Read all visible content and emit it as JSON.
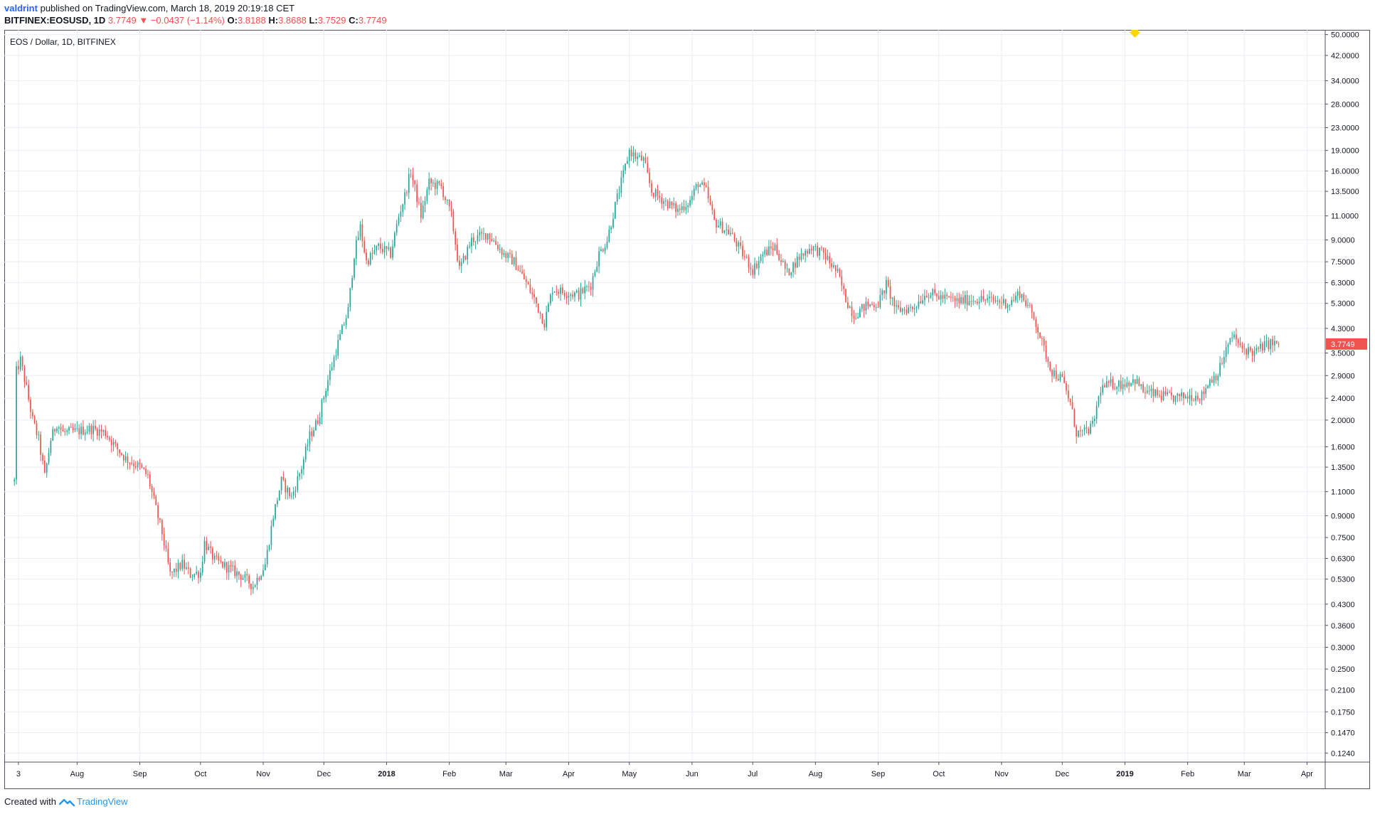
{
  "header": {
    "username": "valdrint",
    "published_text": "published on TradingView.com, March 18, 2019 20:19:18 CET",
    "symbol": "BITFINEX:EOSUSD, 1D",
    "last": "3.7749",
    "change": "−0.0437 (−1.14%)",
    "open_label": "O:",
    "open": "3.8188",
    "high_label": "H:",
    "high": "3.8688",
    "low_label": "L:",
    "low": "3.7529",
    "close_label": "C:",
    "close": "3.7749",
    "down_arrow": "▼"
  },
  "legend": {
    "title": "EOS / Dollar, 1D, BITFINEX"
  },
  "footer": {
    "created_with": "Created with",
    "brand": "TradingView"
  },
  "colors": {
    "up": "#26a69a",
    "down": "#ef5350",
    "grid": "#e8eef3",
    "axis": "#50535e",
    "price_label_bg": "#ef5350",
    "marker": "#ffd600"
  },
  "icons": {
    "logo": "tradingview-logo-icon",
    "marker": "down-arrow-marker-icon"
  },
  "chart_data": {
    "type": "candlestick",
    "scale": "log",
    "y_ticks": [
      "50.0000",
      "42.0000",
      "34.0000",
      "28.0000",
      "23.0000",
      "19.0000",
      "16.0000",
      "13.5000",
      "11.0000",
      "9.0000",
      "7.5000",
      "6.3000",
      "5.3000",
      "4.3000",
      "3.5000",
      "2.9000",
      "2.4000",
      "2.0000",
      "1.6000",
      "1.3500",
      "1.1000",
      "0.9000",
      "0.7500",
      "0.6300",
      "0.5300",
      "0.4300",
      "0.3600",
      "0.3000",
      "0.2500",
      "0.2100",
      "0.1750",
      "0.1470",
      "0.1240"
    ],
    "x_ticks": [
      {
        "label": "3",
        "date": "2017-07-03",
        "bold": false
      },
      {
        "label": "Aug",
        "date": "2017-08-01",
        "bold": false
      },
      {
        "label": "Sep",
        "date": "2017-09-01",
        "bold": false
      },
      {
        "label": "Oct",
        "date": "2017-10-01",
        "bold": false
      },
      {
        "label": "Nov",
        "date": "2017-11-01",
        "bold": false
      },
      {
        "label": "Dec",
        "date": "2017-12-01",
        "bold": false
      },
      {
        "label": "2018",
        "date": "2018-01-01",
        "bold": true
      },
      {
        "label": "Feb",
        "date": "2018-02-01",
        "bold": false
      },
      {
        "label": "Mar",
        "date": "2018-03-01",
        "bold": false
      },
      {
        "label": "Apr",
        "date": "2018-04-01",
        "bold": false
      },
      {
        "label": "May",
        "date": "2018-05-01",
        "bold": false
      },
      {
        "label": "Jun",
        "date": "2018-06-01",
        "bold": false
      },
      {
        "label": "Jul",
        "date": "2018-07-01",
        "bold": false
      },
      {
        "label": "Aug",
        "date": "2018-08-01",
        "bold": false
      },
      {
        "label": "Sep",
        "date": "2018-09-01",
        "bold": false
      },
      {
        "label": "Oct",
        "date": "2018-10-01",
        "bold": false
      },
      {
        "label": "Nov",
        "date": "2018-11-01",
        "bold": false
      },
      {
        "label": "Dec",
        "date": "2018-12-01",
        "bold": false
      },
      {
        "label": "2019",
        "date": "2019-01-01",
        "bold": true
      },
      {
        "label": "Feb",
        "date": "2019-02-01",
        "bold": false
      },
      {
        "label": "Mar",
        "date": "2019-03-01",
        "bold": false
      },
      {
        "label": "Apr",
        "date": "2019-04-01",
        "bold": false
      }
    ],
    "x_range": [
      "2017-06-26",
      "2019-04-10"
    ],
    "y_range": [
      0.115,
      52
    ],
    "current_price": "3.7749",
    "marker_date": "2019-01-01",
    "approx_close_path": [
      [
        "2017-07-01",
        1.2
      ],
      [
        "2017-07-02",
        3.0
      ],
      [
        "2017-07-04",
        3.3
      ],
      [
        "2017-07-07",
        2.6
      ],
      [
        "2017-07-10",
        2.0
      ],
      [
        "2017-07-13",
        1.7
      ],
      [
        "2017-07-16",
        1.25
      ],
      [
        "2017-07-19",
        1.7
      ],
      [
        "2017-07-22",
        1.95
      ],
      [
        "2017-07-25",
        1.8
      ],
      [
        "2017-08-01",
        1.82
      ],
      [
        "2017-08-08",
        1.86
      ],
      [
        "2017-08-15",
        1.8
      ],
      [
        "2017-08-20",
        1.6
      ],
      [
        "2017-08-25",
        1.45
      ],
      [
        "2017-09-01",
        1.35
      ],
      [
        "2017-09-05",
        1.25
      ],
      [
        "2017-09-09",
        0.95
      ],
      [
        "2017-09-12",
        0.78
      ],
      [
        "2017-09-16",
        0.55
      ],
      [
        "2017-09-22",
        0.6
      ],
      [
        "2017-09-26",
        0.55
      ],
      [
        "2017-10-01",
        0.56
      ],
      [
        "2017-10-03",
        0.72
      ],
      [
        "2017-10-08",
        0.62
      ],
      [
        "2017-10-15",
        0.58
      ],
      [
        "2017-10-22",
        0.54
      ],
      [
        "2017-10-27",
        0.5
      ],
      [
        "2017-11-02",
        0.6
      ],
      [
        "2017-11-06",
        0.9
      ],
      [
        "2017-11-10",
        1.2
      ],
      [
        "2017-11-15",
        1.05
      ],
      [
        "2017-11-20",
        1.35
      ],
      [
        "2017-11-24",
        1.75
      ],
      [
        "2017-11-28",
        2.0
      ],
      [
        "2017-12-03",
        2.8
      ],
      [
        "2017-12-08",
        3.8
      ],
      [
        "2017-12-13",
        5.0
      ],
      [
        "2017-12-16",
        8.0
      ],
      [
        "2017-12-19",
        10.0
      ],
      [
        "2017-12-22",
        7.5
      ],
      [
        "2017-12-28",
        8.5
      ],
      [
        "2018-01-03",
        8.0
      ],
      [
        "2018-01-07",
        11.0
      ],
      [
        "2018-01-10",
        13.0
      ],
      [
        "2018-01-13",
        16.0
      ],
      [
        "2018-01-18",
        11.0
      ],
      [
        "2018-01-22",
        14.5
      ],
      [
        "2018-01-28",
        14.0
      ],
      [
        "2018-02-02",
        11.0
      ],
      [
        "2018-02-06",
        7.0
      ],
      [
        "2018-02-12",
        9.0
      ],
      [
        "2018-02-20",
        9.5
      ],
      [
        "2018-02-28",
        8.0
      ],
      [
        "2018-03-05",
        7.5
      ],
      [
        "2018-03-10",
        6.5
      ],
      [
        "2018-03-15",
        5.5
      ],
      [
        "2018-03-20",
        4.5
      ],
      [
        "2018-03-24",
        6.0
      ],
      [
        "2018-03-30",
        5.8
      ],
      [
        "2018-04-06",
        5.7
      ],
      [
        "2018-04-12",
        6.2
      ],
      [
        "2018-04-16",
        8.0
      ],
      [
        "2018-04-20",
        9.0
      ],
      [
        "2018-04-24",
        12.0
      ],
      [
        "2018-04-28",
        15.5
      ],
      [
        "2018-05-01",
        19.0
      ],
      [
        "2018-05-04",
        18.0
      ],
      [
        "2018-05-08",
        17.5
      ],
      [
        "2018-05-12",
        13.5
      ],
      [
        "2018-05-18",
        12.5
      ],
      [
        "2018-05-25",
        11.5
      ],
      [
        "2018-05-31",
        12.5
      ],
      [
        "2018-06-04",
        14.5
      ],
      [
        "2018-06-08",
        13.5
      ],
      [
        "2018-06-12",
        10.5
      ],
      [
        "2018-06-20",
        9.5
      ],
      [
        "2018-06-26",
        8.0
      ],
      [
        "2018-07-01",
        7.0
      ],
      [
        "2018-07-06",
        8.0
      ],
      [
        "2018-07-12",
        8.5
      ],
      [
        "2018-07-18",
        6.8
      ],
      [
        "2018-07-24",
        7.8
      ],
      [
        "2018-07-30",
        8.5
      ],
      [
        "2018-08-05",
        8.0
      ],
      [
        "2018-08-12",
        6.8
      ],
      [
        "2018-08-16",
        5.5
      ],
      [
        "2018-08-20",
        4.8
      ],
      [
        "2018-08-26",
        5.2
      ],
      [
        "2018-09-01",
        5.3
      ],
      [
        "2018-09-05",
        6.2
      ],
      [
        "2018-09-10",
        5.0
      ],
      [
        "2018-09-18",
        5.1
      ],
      [
        "2018-09-25",
        5.8
      ],
      [
        "2018-10-01",
        5.6
      ],
      [
        "2018-10-10",
        5.4
      ],
      [
        "2018-10-20",
        5.5
      ],
      [
        "2018-10-30",
        5.4
      ],
      [
        "2018-11-05",
        5.3
      ],
      [
        "2018-11-10",
        5.8
      ],
      [
        "2018-11-14",
        5.2
      ],
      [
        "2018-11-18",
        4.5
      ],
      [
        "2018-11-22",
        3.6
      ],
      [
        "2018-11-26",
        3.0
      ],
      [
        "2018-12-01",
        2.8
      ],
      [
        "2018-12-05",
        2.3
      ],
      [
        "2018-12-08",
        1.8
      ],
      [
        "2018-12-12",
        1.8
      ],
      [
        "2018-12-16",
        1.9
      ],
      [
        "2018-12-20",
        2.6
      ],
      [
        "2018-12-25",
        2.7
      ],
      [
        "2018-12-30",
        2.7
      ],
      [
        "2019-01-06",
        2.8
      ],
      [
        "2019-01-10",
        2.55
      ],
      [
        "2019-01-18",
        2.45
      ],
      [
        "2019-01-26",
        2.4
      ],
      [
        "2019-02-02",
        2.45
      ],
      [
        "2019-02-08",
        2.45
      ],
      [
        "2019-02-12",
        2.8
      ],
      [
        "2019-02-16",
        2.95
      ],
      [
        "2019-02-20",
        3.6
      ],
      [
        "2019-02-24",
        4.1
      ],
      [
        "2019-02-26",
        3.7
      ],
      [
        "2019-03-02",
        3.6
      ],
      [
        "2019-03-06",
        3.5
      ],
      [
        "2019-03-10",
        3.7
      ],
      [
        "2019-03-14",
        3.8
      ],
      [
        "2019-03-18",
        3.77
      ]
    ]
  }
}
